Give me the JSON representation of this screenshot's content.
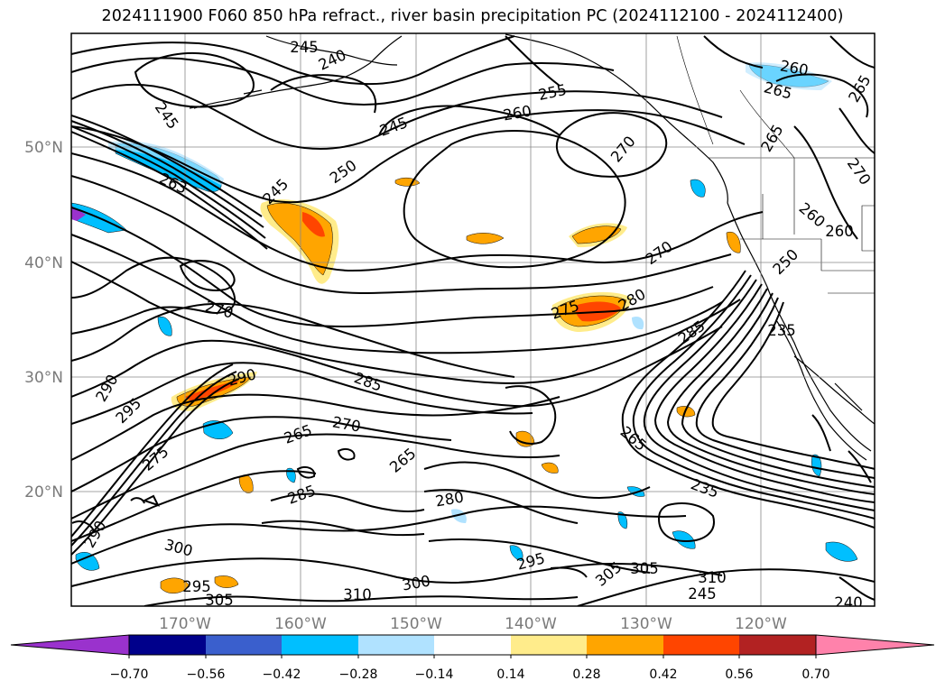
{
  "title": "2024111900 F060 850 hPa refract., river basin precipitation PC (2024112100 - 2024112400)",
  "lat_labels": [
    "50°N",
    "40°N",
    "30°N",
    "20°N"
  ],
  "lon_labels": [
    "170°W",
    "160°W",
    "150°W",
    "140°W",
    "130°W",
    "120°W"
  ],
  "colorbar": {
    "tick_labels": [
      "−0.70",
      "−0.56",
      "−0.42",
      "−0.28",
      "−0.14",
      "0.14",
      "0.28",
      "0.42",
      "0.56",
      "0.70"
    ],
    "colors": [
      "#9a32cd",
      "#00008b",
      "#3a5fcd",
      "#00bfff",
      "#b0e2ff",
      "#ffffff",
      "#ffec8b",
      "#ffa500",
      "#ff4500",
      "#b22222",
      "#ff82ab"
    ]
  },
  "contour_labels": [
    "245",
    "240",
    "245",
    "255",
    "260",
    "260",
    "265",
    "265",
    "265",
    "245",
    "270",
    "250",
    "263",
    "245",
    "270",
    "260",
    "260",
    "270",
    "250",
    "275",
    "280",
    "270",
    "285",
    "235",
    "290",
    "290",
    "295",
    "275",
    "285",
    "270",
    "265",
    "265",
    "265",
    "285",
    "280",
    "290",
    "300",
    "295",
    "295",
    "300",
    "305",
    "305",
    "305",
    "310",
    "310",
    "245",
    "240",
    "235"
  ]
}
